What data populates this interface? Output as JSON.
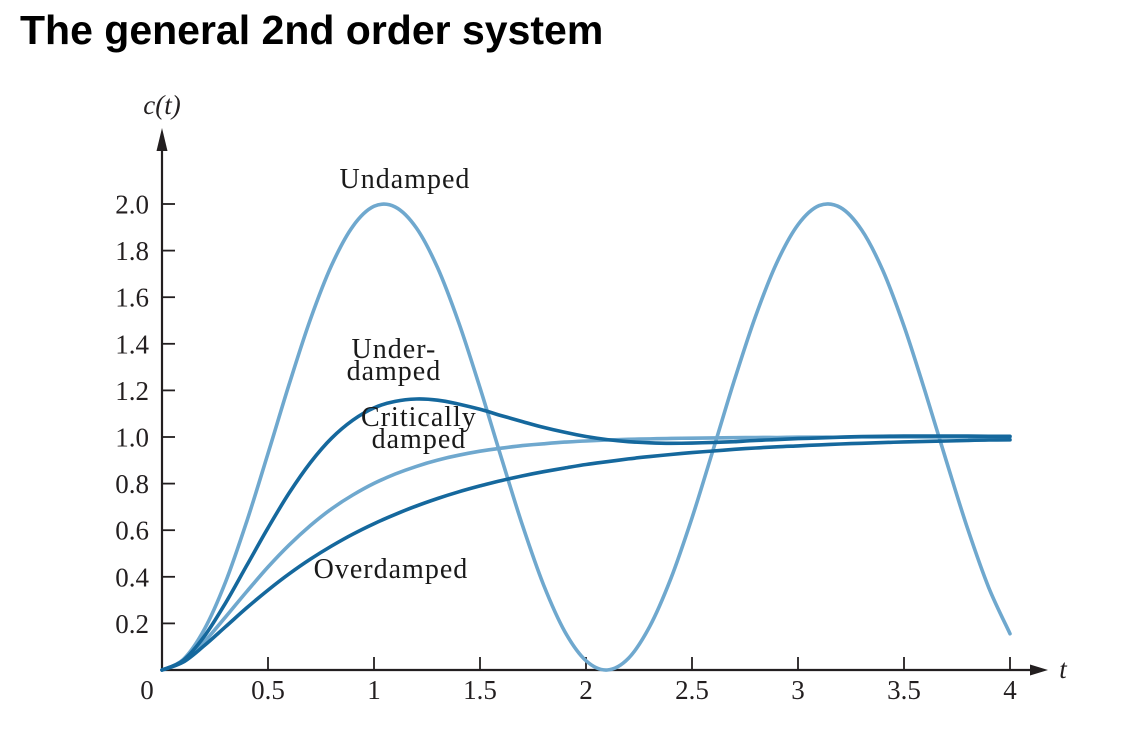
{
  "title": "The general 2nd order system",
  "colors": {
    "background": "#ffffff",
    "title_text": "#000000",
    "axis": "#231f20",
    "label_text": "#1a1a1a",
    "light_blue": "#6FA8CE",
    "dark_blue": "#15689D"
  },
  "chart_data": {
    "type": "line",
    "title": "The general 2nd order system",
    "xlabel": "t",
    "ylabel": "c(t)",
    "xlim": [
      0,
      4.2
    ],
    "ylim": [
      0,
      2.3
    ],
    "grid": false,
    "legend": "inline-annotations",
    "x_ticks": [
      0,
      0.5,
      1,
      1.5,
      2,
      2.5,
      3,
      3.5,
      4
    ],
    "x_tick_labels": [
      "0",
      "0.5",
      "1",
      "1.5",
      "2",
      "2.5",
      "3",
      "3.5",
      "4"
    ],
    "y_ticks": [
      0.2,
      0.4,
      0.6,
      0.8,
      1.0,
      1.2,
      1.4,
      1.6,
      1.8,
      2.0
    ],
    "y_tick_labels": [
      "0.2",
      "0.4",
      "0.6",
      "0.8",
      "1.0",
      "1.2",
      "1.4",
      "1.6",
      "1.8",
      "2.0"
    ],
    "t_start": 0,
    "t_step": 0.1,
    "t_end": 4,
    "series": [
      {
        "name": "Undamped",
        "color": "#6FA8CE",
        "values": [
          0,
          0.045,
          0.175,
          0.378,
          0.638,
          0.929,
          1.227,
          1.505,
          1.737,
          1.904,
          1.99,
          1.987,
          1.897,
          1.726,
          1.49,
          1.211,
          0.913,
          0.622,
          0.365,
          0.165,
          0.04,
          0.0,
          0.05,
          0.186,
          0.392,
          0.653,
          0.946,
          1.244,
          1.519,
          1.748,
          1.911,
          1.993,
          1.985,
          1.889,
          1.715,
          1.476,
          1.194,
          0.896,
          0.607,
          0.353,
          0.156
        ]
      },
      {
        "name": "Underdamped",
        "color": "#15689D",
        "values": [
          0,
          0.041,
          0.145,
          0.288,
          0.449,
          0.61,
          0.76,
          0.89,
          0.995,
          1.072,
          1.125,
          1.153,
          1.163,
          1.158,
          1.141,
          1.119,
          1.092,
          1.066,
          1.041,
          1.02,
          1.002,
          0.989,
          0.98,
          0.975,
          0.973,
          0.974,
          0.977,
          0.98,
          0.985,
          0.989,
          0.993,
          0.996,
          0.999,
          1.002,
          1.003,
          1.004,
          1.004,
          1.004,
          1.004,
          1.003,
          1.003
        ]
      },
      {
        "name": "Critically damped",
        "color": "#6FA8CE",
        "values": [
          0,
          0.037,
          0.122,
          0.228,
          0.337,
          0.442,
          0.537,
          0.62,
          0.692,
          0.751,
          0.801,
          0.841,
          0.874,
          0.901,
          0.922,
          0.939,
          0.952,
          0.963,
          0.971,
          0.978,
          0.983,
          0.987,
          0.99,
          0.992,
          0.994,
          0.995,
          0.996,
          0.997,
          0.998,
          0.998,
          0.999,
          0.999,
          0.999,
          1.0,
          1.0,
          1.0,
          1.0,
          1.0,
          1.0,
          1.0,
          1.0
        ]
      },
      {
        "name": "Overdamped",
        "color": "#15689D",
        "values": [
          0,
          0.034,
          0.105,
          0.186,
          0.267,
          0.343,
          0.413,
          0.476,
          0.532,
          0.583,
          0.628,
          0.668,
          0.704,
          0.736,
          0.765,
          0.79,
          0.813,
          0.833,
          0.851,
          0.867,
          0.882,
          0.894,
          0.906,
          0.916,
          0.925,
          0.933,
          0.94,
          0.947,
          0.953,
          0.958,
          0.962,
          0.966,
          0.97,
          0.973,
          0.976,
          0.979,
          0.981,
          0.983,
          0.985,
          0.987,
          0.988
        ]
      }
    ],
    "annotations": [
      {
        "lines": [
          "Undamped"
        ],
        "t": 1.146,
        "c": 2.112
      },
      {
        "lines": [
          "Under-",
          "damped"
        ],
        "t": 1.094,
        "c": 1.326
      },
      {
        "lines": [
          "Critically",
          "damped"
        ],
        "t": 1.212,
        "c": 1.034
      },
      {
        "lines": [
          "Overdamped"
        ],
        "t": 1.08,
        "c": 0.438
      }
    ]
  }
}
